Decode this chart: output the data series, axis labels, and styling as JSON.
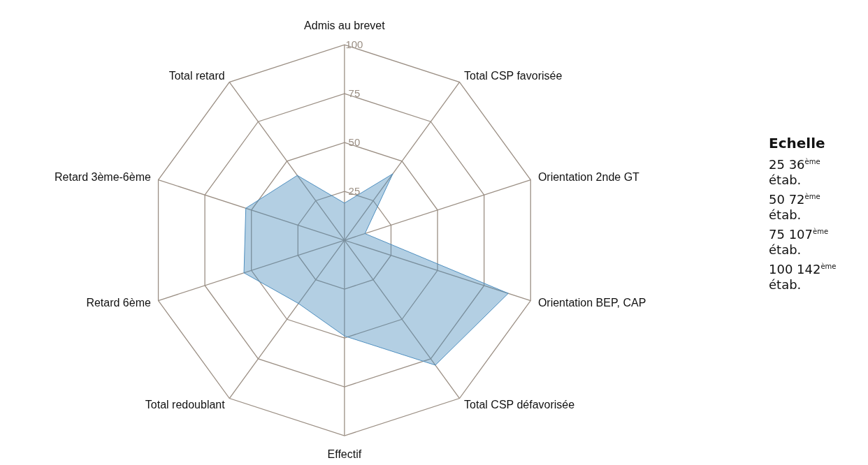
{
  "chart_data": {
    "type": "radar",
    "categories": [
      "Admis au brevet",
      "Total CSP favorisée",
      "Orientation 2nde GT",
      "Orientation BEP, CAP",
      "Total CSP défavorisée",
      "Effectif",
      "Total redoublant",
      "Retard 6ème",
      "Retard 3ème-6ème",
      "Total retard"
    ],
    "series": [
      {
        "color": "#4f8fbf",
        "values": [
          19,
          42,
          11,
          88,
          79,
          49,
          40,
          54,
          53,
          41
        ]
      }
    ],
    "ylim": [
      0,
      100
    ],
    "yticks": [
      25,
      50,
      75,
      100
    ],
    "grid": true,
    "annotations": [
      "Echelle",
      "25 36$^{ème}$ étab.",
      "50 72$^{ème}$ étab.",
      "75 107$^{ème}$ étab.",
      "100 142$^{ème}$ étab."
    ]
  }
}
